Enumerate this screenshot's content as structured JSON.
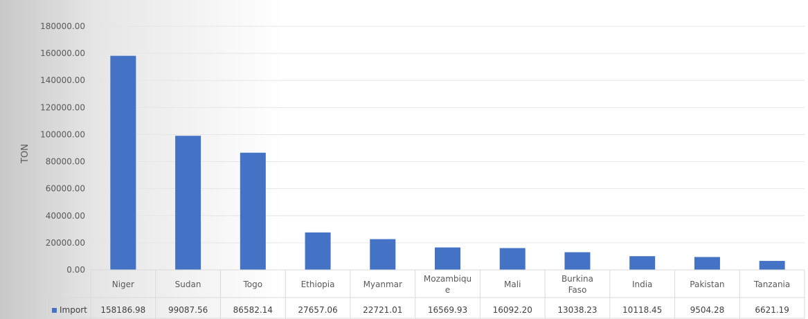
{
  "chart_data": {
    "type": "bar",
    "categories": [
      "Niger",
      "Sudan",
      "Togo",
      "Ethiopia",
      "Myanmar",
      "Mozambique",
      "Mali",
      "Burkina Faso",
      "India",
      "Pakistan",
      "Tanzania"
    ],
    "category_display": [
      [
        "Niger"
      ],
      [
        "Sudan"
      ],
      [
        "Togo"
      ],
      [
        "Ethiopia"
      ],
      [
        "Myanmar"
      ],
      [
        "Mozambiqu",
        "e"
      ],
      [
        "Mali"
      ],
      [
        "Burkina",
        "Faso"
      ],
      [
        "India"
      ],
      [
        "Pakistan"
      ],
      [
        "Tanzania"
      ]
    ],
    "series": [
      {
        "name": "Import",
        "values": [
          158186.98,
          99087.56,
          86582.14,
          27657.06,
          22721.01,
          16569.93,
          16092.2,
          13038.23,
          10118.45,
          9504.28,
          6621.19
        ],
        "labels": [
          "158186.98",
          "99087.56",
          "86582.14",
          "27657.06",
          "22721.01",
          "16569.93",
          "16092.20",
          "13038.23",
          "10118.45",
          "9504.28",
          "6621.19"
        ]
      }
    ],
    "ylabel": "TON",
    "ylim": [
      0,
      180000
    ],
    "yticks": [
      0,
      20000,
      40000,
      60000,
      80000,
      100000,
      120000,
      140000,
      160000,
      180000
    ],
    "ytick_labels": [
      "0.00",
      "20000.00",
      "40000.00",
      "60000.00",
      "80000.00",
      "100000.00",
      "120000.00",
      "140000.00",
      "160000.00",
      "180000.00"
    ],
    "grid": true,
    "data_table": true,
    "legend_key_color": "#4472c4",
    "bar_color": "#4472c4"
  }
}
